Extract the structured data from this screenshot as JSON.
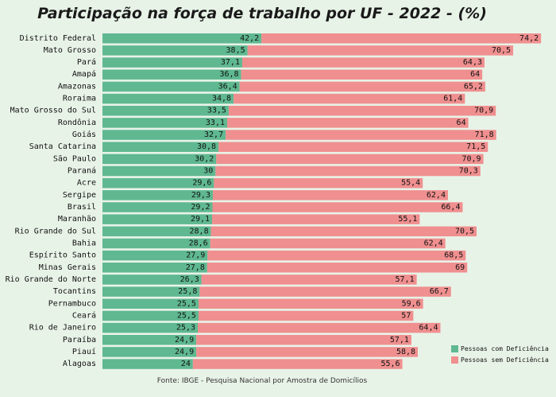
{
  "chart_data": {
    "type": "bar",
    "orientation": "horizontal",
    "stacked": true,
    "title": "Participação na força de trabalho por UF - 2022 - (%)",
    "source": "Fonte: IBGE -  Pesquisa Nacional por Amostra de Domicílios",
    "categories": [
      "Distrito Federal",
      "Mato Grosso",
      "Pará",
      "Amapá",
      "Amazonas",
      "Roraima",
      "Mato Grosso do Sul",
      "Rondônia",
      "Goiás",
      "Santa Catarina",
      "São Paulo",
      "Paraná",
      "Acre",
      "Sergipe",
      "Brasil",
      "Maranhão",
      "Rio Grande do Sul",
      "Bahia",
      "Espírito Santo",
      "Minas Gerais",
      "Rio Grande do Norte",
      "Tocantins",
      "Pernambuco",
      "Ceará",
      "Rio de Janeiro",
      "Paraíba",
      "Piauí",
      "Alagoas"
    ],
    "series": [
      {
        "name": "Pessoas com Deficiência",
        "color": "#5fb890",
        "values": [
          42.2,
          38.5,
          37.1,
          36.8,
          36.4,
          34.8,
          33.5,
          33.1,
          32.7,
          30.8,
          30.2,
          30,
          29.6,
          29.3,
          29.2,
          29.1,
          28.8,
          28.6,
          27.9,
          27.8,
          26.3,
          25.8,
          25.5,
          25.5,
          25.3,
          24.9,
          24.9,
          24
        ],
        "labels": [
          "42,2",
          "38,5",
          "37,1",
          "36,8",
          "36,4",
          "34,8",
          "33,5",
          "33,1",
          "32,7",
          "30,8",
          "30,2",
          "30",
          "29,6",
          "29,3",
          "29,2",
          "29,1",
          "28,8",
          "28,6",
          "27,9",
          "27,8",
          "26,3",
          "25,8",
          "25,5",
          "25,5",
          "25,3",
          "24,9",
          "24,9",
          "24"
        ]
      },
      {
        "name": "Pessoas sem Deficiência",
        "color": "#f08f8f",
        "values": [
          74.2,
          70.5,
          64.3,
          64,
          65.2,
          61.4,
          70.9,
          64,
          71.8,
          71.5,
          70.9,
          70.3,
          55.4,
          62.4,
          66.4,
          55.1,
          70.5,
          62.4,
          68.5,
          69,
          57.1,
          66.7,
          59.6,
          57,
          64.4,
          57.1,
          58.8,
          55.6
        ],
        "labels": [
          "74,2",
          "70,5",
          "64,3",
          "64",
          "65,2",
          "61,4",
          "70,9",
          "64",
          "71,8",
          "71,5",
          "70,9",
          "70,3",
          "55,4",
          "62,4",
          "66,4",
          "55,1",
          "70,5",
          "62,4",
          "68,5",
          "69",
          "57,1",
          "66,7",
          "59,6",
          "57",
          "64,4",
          "57,1",
          "58,8",
          "55,6"
        ]
      }
    ],
    "xlim": [
      0,
      117
    ],
    "grid": false,
    "legend_position": "bottom-right"
  }
}
